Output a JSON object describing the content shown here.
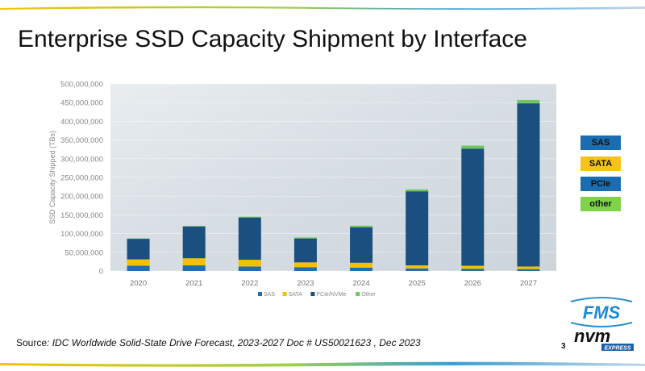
{
  "slide": {
    "title": "Enterprise SSD Capacity Shipment by Interface",
    "source_prefix": "Source",
    "source_text": ": IDC Worldwide Solid-State Drive Forecast, 2023-2027 Doc # US50021623 , Dec 2023",
    "page_number": "3",
    "logo_fms_text": "FMS",
    "logo_nvm_text": "nvm",
    "logo_express_text": "EXPRESS",
    "side_legend": [
      {
        "label": "SAS",
        "color": "#1a6db0"
      },
      {
        "label": "SATA",
        "color": "#f7c21c"
      },
      {
        "label": "PCIe",
        "color": "#1a6db0"
      },
      {
        "label": "other",
        "color": "#7ed348"
      }
    ]
  },
  "chart_data": {
    "type": "bar",
    "stacked": true,
    "title": "",
    "xlabel": "",
    "ylabel": "SSD Capacity Shipped (TBs)",
    "ylim": [
      0,
      500000000
    ],
    "yticks": [
      "0",
      "50,000,000",
      "100,000,000",
      "150,000,000",
      "200,000,000",
      "250,000,000",
      "300,000,000",
      "350,000,000",
      "400,000,000",
      "450,000,000",
      "500,000,000"
    ],
    "categories": [
      "2020",
      "2021",
      "2022",
      "2023",
      "2024",
      "2025",
      "2026",
      "2027"
    ],
    "series": [
      {
        "name": "SAS",
        "color": "#1f6fb0",
        "values": [
          14000000,
          15000000,
          12000000,
          10000000,
          9000000,
          7000000,
          6000000,
          5000000
        ]
      },
      {
        "name": "SATA",
        "color": "#f5c000",
        "values": [
          17000000,
          19000000,
          18000000,
          13000000,
          13000000,
          8000000,
          8000000,
          7000000
        ]
      },
      {
        "name": "PCIe/NVMe",
        "color": "#1b4f7f",
        "values": [
          55000000,
          85000000,
          113000000,
          64000000,
          95000000,
          198000000,
          313000000,
          436000000
        ]
      },
      {
        "name": "Other",
        "color": "#6ec85a",
        "values": [
          1000000,
          1500000,
          2000000,
          2500000,
          4000000,
          5000000,
          8000000,
          9000000
        ]
      }
    ],
    "grid": true,
    "legend": "bottom"
  }
}
